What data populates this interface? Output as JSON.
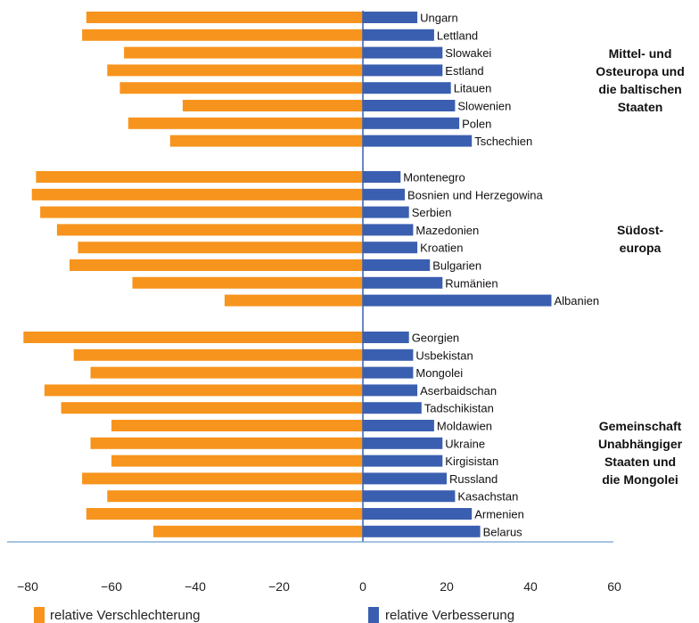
{
  "chart_data": {
    "type": "bar",
    "orientation": "horizontal",
    "xlim": [
      -80,
      60
    ],
    "x_ticks": [
      -80,
      -60,
      -40,
      -20,
      0,
      20,
      40,
      60
    ],
    "grid": false,
    "legend_position": "bottom",
    "series": [
      {
        "name": "relative Verschlechterung",
        "color": "#f7941d"
      },
      {
        "name": "relative Verbesserung",
        "color": "#3a5fb0"
      }
    ],
    "groups": [
      {
        "label": [
          "Mittel- und",
          "Osteuropa und",
          "die baltischen",
          "Staaten"
        ],
        "countries": [
          {
            "name": "Ungarn",
            "worse": -66,
            "better": 13
          },
          {
            "name": "Lettland",
            "worse": -67,
            "better": 17
          },
          {
            "name": "Slowakei",
            "worse": -57,
            "better": 19
          },
          {
            "name": "Estland",
            "worse": -61,
            "better": 19
          },
          {
            "name": "Litauen",
            "worse": -58,
            "better": 21
          },
          {
            "name": "Slowenien",
            "worse": -43,
            "better": 22
          },
          {
            "name": "Polen",
            "worse": -56,
            "better": 23
          },
          {
            "name": "Tschechien",
            "worse": -46,
            "better": 26
          }
        ]
      },
      {
        "label": [
          "Südost-",
          "europa"
        ],
        "countries": [
          {
            "name": "Montenegro",
            "worse": -78,
            "better": 9
          },
          {
            "name": "Bosnien und Herzegowina",
            "worse": -79,
            "better": 10
          },
          {
            "name": "Serbien",
            "worse": -77,
            "better": 11
          },
          {
            "name": "Mazedonien",
            "worse": -73,
            "better": 12
          },
          {
            "name": "Kroatien",
            "worse": -68,
            "better": 13
          },
          {
            "name": "Bulgarien",
            "worse": -70,
            "better": 16
          },
          {
            "name": "Rumänien",
            "worse": -55,
            "better": 19
          },
          {
            "name": "Albanien",
            "worse": -33,
            "better": 45
          }
        ]
      },
      {
        "label": [
          "Gemeinschaft",
          "Unabhängiger",
          "Staaten und",
          "die Mongolei"
        ],
        "countries": [
          {
            "name": "Georgien",
            "worse": -81,
            "better": 11
          },
          {
            "name": "Usbekistan",
            "worse": -69,
            "better": 12
          },
          {
            "name": "Mongolei",
            "worse": -65,
            "better": 12
          },
          {
            "name": "Aserbaidschan",
            "worse": -76,
            "better": 13
          },
          {
            "name": "Tadschikistan",
            "worse": -72,
            "better": 14
          },
          {
            "name": "Moldawien",
            "worse": -60,
            "better": 17
          },
          {
            "name": "Ukraine",
            "worse": -65,
            "better": 19
          },
          {
            "name": "Kirgisistan",
            "worse": -60,
            "better": 19
          },
          {
            "name": "Russland",
            "worse": -67,
            "better": 20
          },
          {
            "name": "Kasachstan",
            "worse": -61,
            "better": 22
          },
          {
            "name": "Armenien",
            "worse": -66,
            "better": 26
          },
          {
            "name": "Belarus",
            "worse": -50,
            "better": 28
          }
        ]
      }
    ]
  }
}
